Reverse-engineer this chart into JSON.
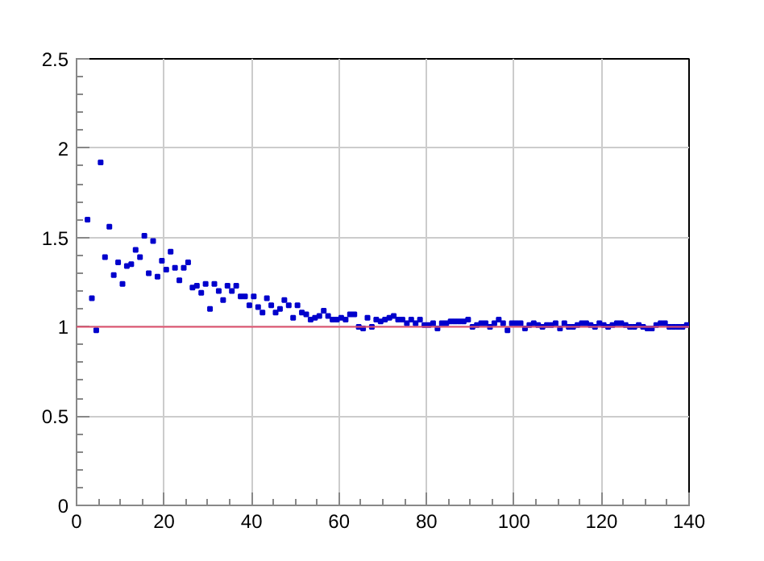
{
  "chart_data": {
    "type": "scatter",
    "marker": "square",
    "grid": true,
    "xlim": [
      0,
      140
    ],
    "xticks": [
      0,
      20,
      40,
      60,
      80,
      100,
      120,
      140
    ],
    "ylim": [
      0,
      2.5
    ],
    "yticks": [
      0,
      0.5,
      1,
      1.5,
      2,
      2.5
    ],
    "ref_lines": [
      {
        "axis": "y",
        "value": 1,
        "label": null,
        "color": "#e0506f"
      }
    ],
    "series": [
      {
        "color": "#0000cc",
        "x": [
          2.5,
          3.5,
          4.5,
          5.5,
          6.5,
          7.5,
          8.5,
          9.5,
          10.5,
          11.5,
          12.5,
          13.5,
          14.5,
          15.5,
          16.5,
          17.5,
          18.5,
          19.5,
          20.5,
          21.5,
          22.5,
          23.5,
          24.5,
          25.5,
          26.5,
          27.5,
          28.5,
          29.5,
          30.5,
          31.5,
          32.5,
          33.5,
          34.5,
          35.5,
          36.5,
          37.5,
          38.5,
          39.5,
          40.5,
          41.5,
          42.5,
          43.5,
          44.5,
          45.5,
          46.5,
          47.5,
          48.5,
          49.5,
          50.5,
          51.5,
          52.5,
          53.5,
          54.5,
          55.5,
          56.5,
          57.5,
          58.5,
          59.5,
          60.5,
          61.5,
          62.5,
          63.5,
          64.5,
          65.5,
          66.5,
          67.5,
          68.5,
          69.5,
          70.5,
          71.5,
          72.5,
          73.5,
          74.5,
          75.5,
          76.5,
          77.5,
          78.5,
          79.5,
          80.5,
          81.5,
          82.5,
          83.5,
          84.5,
          85.5,
          86.5,
          87.5,
          88.5,
          89.5,
          90.5,
          91.5,
          92.5,
          93.5,
          94.5,
          95.5,
          96.5,
          97.5,
          98.5,
          99.5,
          100.5,
          101.5,
          102.5,
          103.5,
          104.5,
          105.5,
          106.5,
          107.5,
          108.5,
          109.5,
          110.5,
          111.5,
          112.5,
          113.5,
          114.5,
          115.5,
          116.5,
          117.5,
          118.5,
          119.5,
          120.5,
          121.5,
          122.5,
          123.5,
          124.5,
          125.5,
          126.5,
          127.5,
          128.5,
          129.5,
          130.5,
          131.5,
          132.5,
          133.5,
          134.5,
          135.5,
          136.5,
          137.5,
          138.5,
          139.5
        ],
        "values": [
          1.6,
          1.16,
          0.98,
          1.92,
          1.39,
          1.56,
          1.29,
          1.36,
          1.24,
          1.34,
          1.35,
          1.43,
          1.39,
          1.51,
          1.3,
          1.48,
          1.28,
          1.37,
          1.32,
          1.42,
          1.33,
          1.26,
          1.33,
          1.36,
          1.22,
          1.23,
          1.19,
          1.24,
          1.1,
          1.24,
          1.2,
          1.15,
          1.23,
          1.2,
          1.23,
          1.17,
          1.17,
          1.12,
          1.17,
          1.11,
          1.08,
          1.16,
          1.12,
          1.08,
          1.1,
          1.15,
          1.12,
          1.05,
          1.12,
          1.08,
          1.07,
          1.04,
          1.05,
          1.06,
          1.09,
          1.06,
          1.04,
          1.04,
          1.05,
          1.04,
          1.07,
          1.07,
          1.0,
          0.99,
          1.05,
          1.0,
          1.04,
          1.03,
          1.04,
          1.05,
          1.06,
          1.04,
          1.04,
          1.02,
          1.04,
          1.02,
          1.04,
          1.01,
          1.01,
          1.02,
          0.99,
          1.02,
          1.02,
          1.03,
          1.03,
          1.03,
          1.03,
          1.04,
          1.0,
          1.01,
          1.02,
          1.02,
          1.0,
          1.02,
          1.04,
          1.02,
          0.98,
          1.02,
          1.02,
          1.02,
          0.99,
          1.01,
          1.02,
          1.01,
          1.0,
          1.01,
          1.01,
          1.02,
          0.99,
          1.02,
          1.0,
          1.0,
          1.01,
          1.02,
          1.02,
          1.01,
          1.0,
          1.02,
          1.01,
          1.0,
          1.01,
          1.02,
          1.02,
          1.01,
          1.0,
          1.0,
          1.01,
          1.0,
          0.99,
          0.99,
          1.01,
          1.02,
          1.02,
          1.0,
          1.0,
          1.0,
          1.0,
          1.01
        ]
      }
    ]
  }
}
